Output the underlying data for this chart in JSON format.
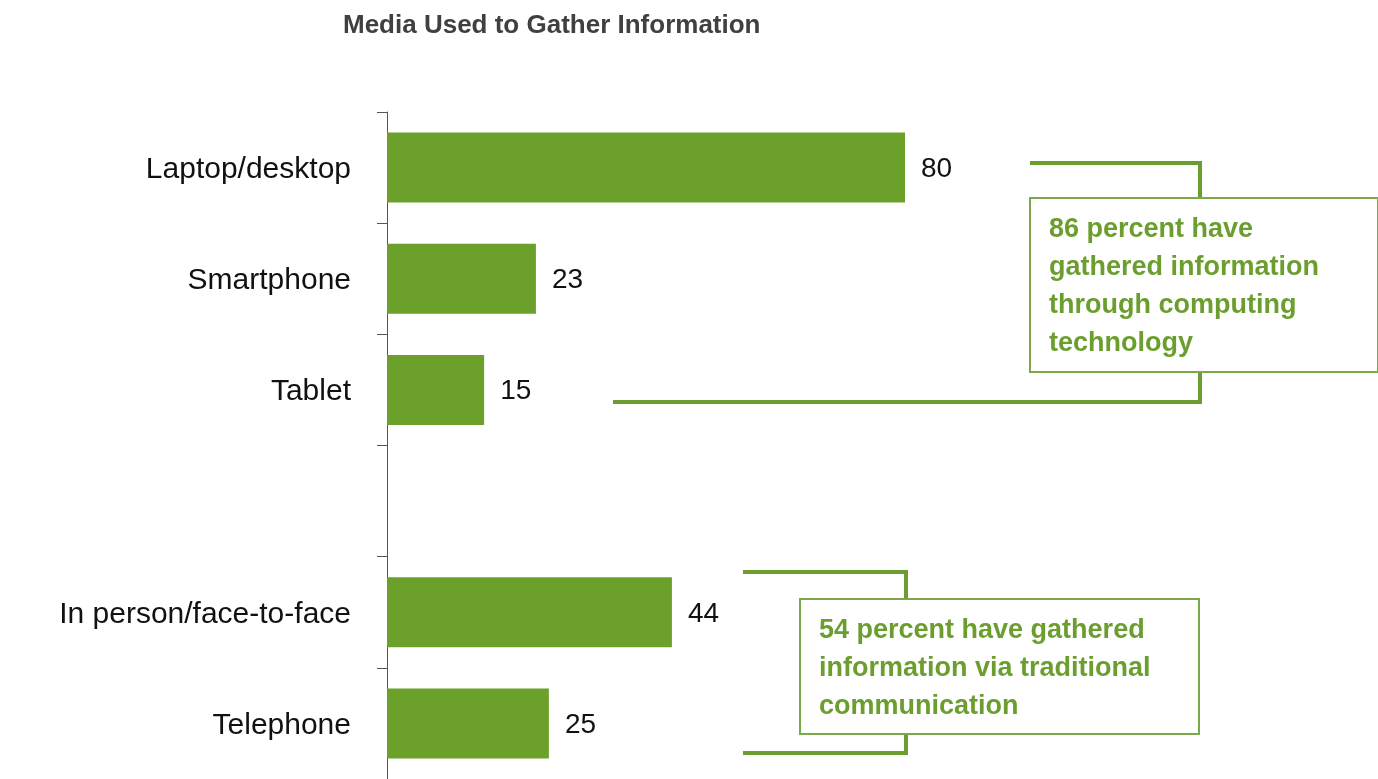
{
  "chart_data": {
    "type": "bar",
    "orientation": "horizontal",
    "title": "Media Used to Gather Information",
    "categories": [
      "Laptop/desktop",
      "Smartphone",
      "Tablet",
      null,
      "In person/face-to-face",
      "Telephone"
    ],
    "values": [
      80,
      23,
      15,
      null,
      44,
      25
    ],
    "color": "#6ba02a",
    "data_labels": true,
    "annotations": [
      "86 percent have gathered information through computing technology",
      "54 percent have gathered information via traditional communication"
    ]
  }
}
